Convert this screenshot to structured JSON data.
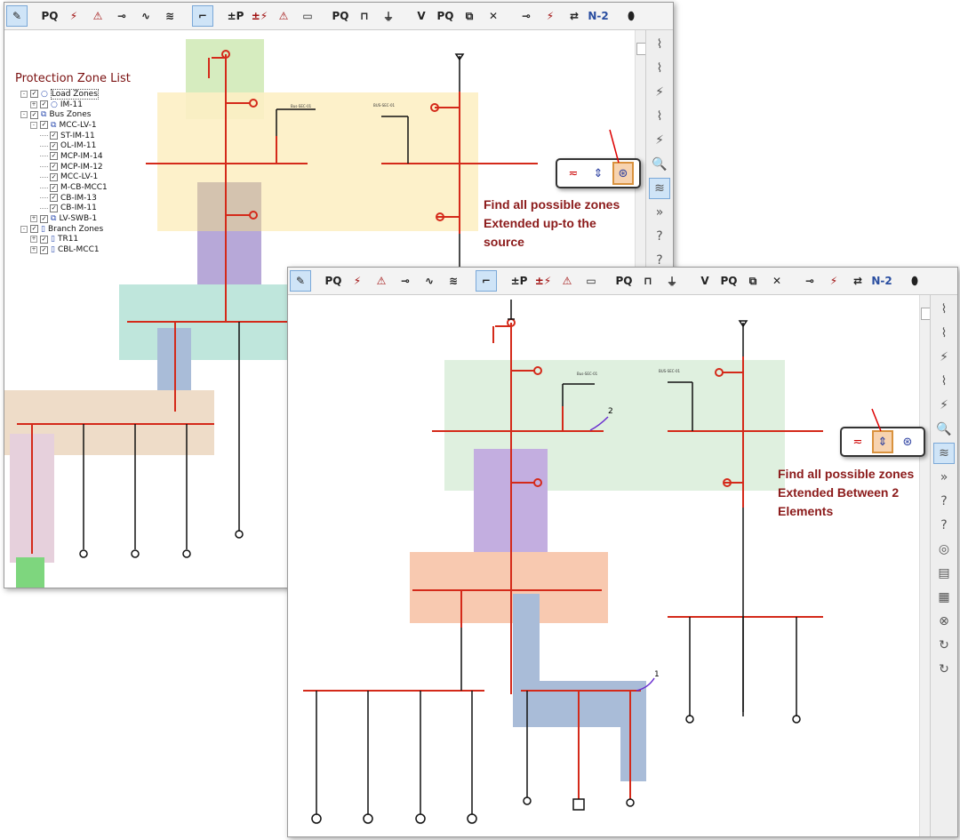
{
  "toolbar": {
    "items": [
      {
        "icon": "pencil-edit-icon",
        "glyph": "✎",
        "selected": true
      },
      {
        "icon": "load-flow-icon",
        "glyph": "PQ"
      },
      {
        "icon": "short-circuit-icon",
        "glyph": "⚡"
      },
      {
        "icon": "arc-flash-icon",
        "glyph": "⚠"
      },
      {
        "icon": "motor-starting-icon",
        "glyph": "⊸"
      },
      {
        "icon": "harmonics-icon",
        "glyph": "∿"
      },
      {
        "icon": "transient-stability-icon",
        "glyph": "≋"
      },
      {
        "icon": "star-protection-coordination-icon",
        "glyph": "⌐",
        "selected": true
      },
      {
        "icon": "optimal-power-flow-icon",
        "glyph": "±P"
      },
      {
        "icon": "dc-short-circuit-icon",
        "glyph": "±⚡"
      },
      {
        "icon": "dc-arc-flash-icon",
        "glyph": "⚠"
      },
      {
        "icon": "battery-sizing-icon",
        "glyph": "▭"
      },
      {
        "icon": "unbalanced-load-flow-icon",
        "glyph": "PQ"
      },
      {
        "icon": "time-domain-icon",
        "glyph": "⊓"
      },
      {
        "icon": "ground-grid-icon",
        "glyph": "⏚"
      },
      {
        "icon": "voltage-stability-icon",
        "glyph": "V"
      },
      {
        "icon": "pq-curve-icon",
        "glyph": "PQ"
      },
      {
        "icon": "reliability-icon",
        "glyph": "⧉"
      },
      {
        "icon": "contingency-icon",
        "glyph": "✕"
      },
      {
        "icon": "switching-sequence-icon",
        "glyph": "⊸"
      },
      {
        "icon": "fault-switching-icon",
        "glyph": "⚡"
      },
      {
        "icon": "n-1-contingency-icon",
        "glyph": "⇄"
      },
      {
        "icon": "n-2-contingency-icon",
        "glyph": "N-2"
      },
      {
        "icon": "cable-pulling-icon",
        "glyph": "⬮"
      }
    ],
    "right_items": [
      {
        "icon": "star-tcc-view-icon",
        "glyph": "⌇"
      },
      {
        "icon": "star-device-tcc-icon",
        "glyph": "⌇"
      },
      {
        "icon": "fault-insertion-icon",
        "glyph": "⚡"
      },
      {
        "icon": "fault-remove-icon",
        "glyph": "⌇"
      },
      {
        "icon": "sequence-of-operation-icon",
        "glyph": "⚡"
      },
      {
        "icon": "protection-check-icon",
        "glyph": "🔍"
      },
      {
        "icon": "find-protection-zones-icon",
        "glyph": "≋",
        "selected": true
      },
      {
        "icon": "expand-icon",
        "glyph": "»"
      },
      {
        "icon": "tcc-report-icon",
        "glyph": "?"
      },
      {
        "icon": "zone-query-icon",
        "glyph": "?"
      },
      {
        "icon": "display-options-icon",
        "glyph": "◎"
      },
      {
        "icon": "report-icon",
        "glyph": "▤"
      },
      {
        "icon": "plot-report-icon",
        "glyph": "▦"
      },
      {
        "icon": "stop-icon",
        "glyph": "⊗"
      },
      {
        "icon": "rotate-icon",
        "glyph": "↻"
      },
      {
        "icon": "rotate-alt-icon",
        "glyph": "↻"
      }
    ]
  },
  "tree": {
    "title": "Protection Zone List",
    "rows": [
      {
        "label": "Load Zones",
        "level": 0,
        "icon": "○",
        "expander": "−"
      },
      {
        "label": "IM-11",
        "level": 1,
        "icon": "○",
        "expander": "+"
      },
      {
        "label": "Bus Zones",
        "level": 0,
        "icon": "⧉",
        "expander": "−"
      },
      {
        "label": "MCC-LV-1",
        "level": 1,
        "icon": "⧉",
        "expander": "−"
      },
      {
        "label": "ST-IM-11",
        "level": 2,
        "icon": "",
        "expander": ""
      },
      {
        "label": "OL-IM-11",
        "level": 2,
        "icon": "",
        "expander": ""
      },
      {
        "label": "MCP-IM-14",
        "level": 2,
        "icon": "",
        "expander": ""
      },
      {
        "label": "MCP-IM-12",
        "level": 2,
        "icon": "",
        "expander": ""
      },
      {
        "label": "MCC-LV-1",
        "level": 2,
        "icon": "",
        "expander": ""
      },
      {
        "label": "M-CB-MCC1",
        "level": 2,
        "icon": "",
        "expander": ""
      },
      {
        "label": "CB-IM-13",
        "level": 2,
        "icon": "",
        "expander": ""
      },
      {
        "label": "CB-IM-11",
        "level": 2,
        "icon": "",
        "expander": ""
      },
      {
        "label": "LV-SWB-1",
        "level": 1,
        "icon": "⧉",
        "expander": "+"
      },
      {
        "label": "Branch Zones",
        "level": 0,
        "icon": "▯",
        "expander": "−"
      },
      {
        "label": "TR11",
        "level": 1,
        "icon": "▯",
        "expander": "+"
      },
      {
        "label": "CBL-MCC1",
        "level": 1,
        "icon": "▯",
        "expander": "+"
      }
    ]
  },
  "diagram": {
    "bus_labels": [
      "Bus-SEC-01",
      "BUS-SEC-01"
    ],
    "markers": [
      "1",
      "2"
    ]
  },
  "popups": {
    "zone_modes": [
      {
        "icon": "zone-between-breakers-icon",
        "glyph": "≂"
      },
      {
        "icon": "zone-between-elements-icon",
        "glyph": "⇕"
      },
      {
        "icon": "zone-to-source-icon",
        "glyph": "⊛"
      }
    ],
    "selected_first": 2,
    "selected_second": 1
  },
  "notes": {
    "first": [
      "Find all possible zones",
      "Extended up-to the",
      "source"
    ],
    "second": [
      "Find all possible zones",
      "Extended Between 2",
      "Elements"
    ]
  },
  "colors": {
    "zone_green": "#d6ecbf",
    "zone_yellow": "#fdefc4",
    "zone_purple": "#b7a8d8",
    "zone_teal": "#bfe6dc",
    "zone_tan": "#eedcc8",
    "zone_salmon": "#f8c9b0",
    "zone_blue": "#a9bcd8",
    "bus": "#d42a1a",
    "note": "#8b1a1a"
  }
}
